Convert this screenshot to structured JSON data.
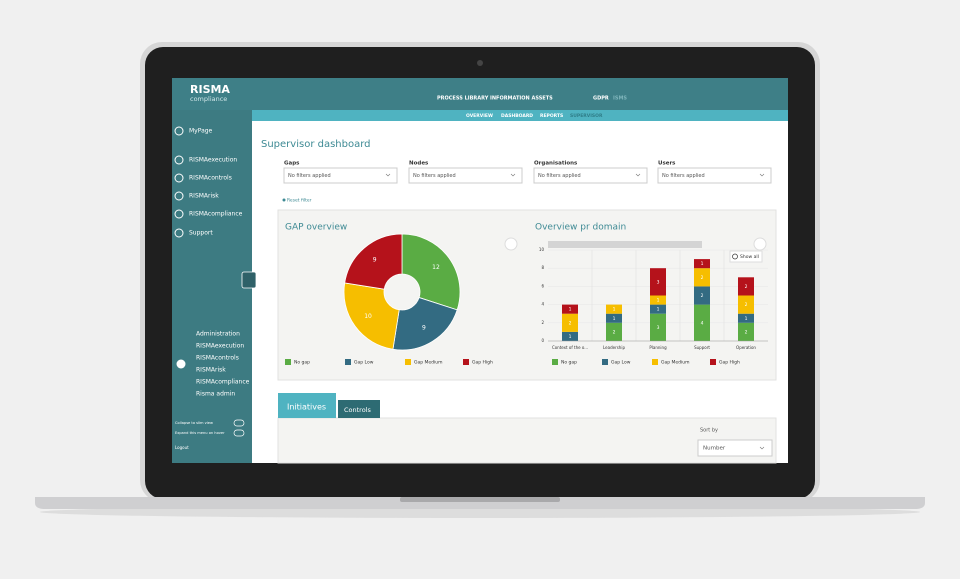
{
  "header": {
    "logo": "RISMA",
    "logo_sub": "compliance",
    "nav": [
      "PROCESS LIBRARY",
      "INFORMATION ASSETS",
      "GDPR",
      "ISMS"
    ],
    "subnav": [
      "OVERVIEW",
      "DASHBOARD",
      "REPORTS",
      "SUPERVISOR"
    ]
  },
  "sidebar": {
    "menu": [
      "MyPage",
      "RISMAexecution",
      "RISMAcontrols",
      "RISMArisk",
      "RISMAcompliance",
      "Support"
    ],
    "admin": [
      "Administration",
      "RISMAexecution",
      "RISMAcontrols",
      "RISMArisk",
      "RISMAcompliance",
      "Risma admin"
    ],
    "toggles": [
      "Collapse to slim view",
      "Expand this menu on hover"
    ],
    "logout": "Logout"
  },
  "page": {
    "title": "Supervisor dashboard",
    "filters": [
      {
        "label": "Gaps",
        "value": "No filters applied"
      },
      {
        "label": "Nodes",
        "value": "No filters applied"
      },
      {
        "label": "Organisations",
        "value": "No filters applied"
      },
      {
        "label": "Users",
        "value": "No filters applied"
      }
    ],
    "reset": "Reset filter",
    "show_all": "Show all"
  },
  "chart_data": [
    {
      "type": "pie",
      "title": "GAP overview",
      "donut": true,
      "categories": [
        "No gap",
        "Gap Low",
        "Gap Medium",
        "Gap High"
      ],
      "values": [
        12,
        9,
        10,
        9
      ],
      "colors": [
        "#5aac44",
        "#336b82",
        "#f6be00",
        "#b5121b"
      ]
    },
    {
      "type": "bar",
      "stacked": true,
      "title": "Overview pr domain",
      "categories": [
        "Context of the o...",
        "Leadership",
        "Planning",
        "Support",
        "Operation"
      ],
      "series": [
        {
          "name": "No gap",
          "color": "#5aac44",
          "values": [
            0,
            2,
            3,
            4,
            2
          ]
        },
        {
          "name": "Gap Low",
          "color": "#336b82",
          "values": [
            1,
            1,
            1,
            2,
            1
          ]
        },
        {
          "name": "Gap Medium",
          "color": "#f6be00",
          "values": [
            2,
            1,
            1,
            2,
            2
          ]
        },
        {
          "name": "Gap High",
          "color": "#b5121b",
          "values": [
            1,
            0,
            3,
            1,
            2
          ]
        }
      ],
      "ylim": [
        0,
        10
      ],
      "yticks": [
        0,
        2,
        4,
        6,
        8,
        10
      ],
      "grid": true
    }
  ],
  "tabs": [
    "Initiatives",
    "Controls"
  ],
  "sort": {
    "label": "Sort by",
    "value": "Number"
  }
}
